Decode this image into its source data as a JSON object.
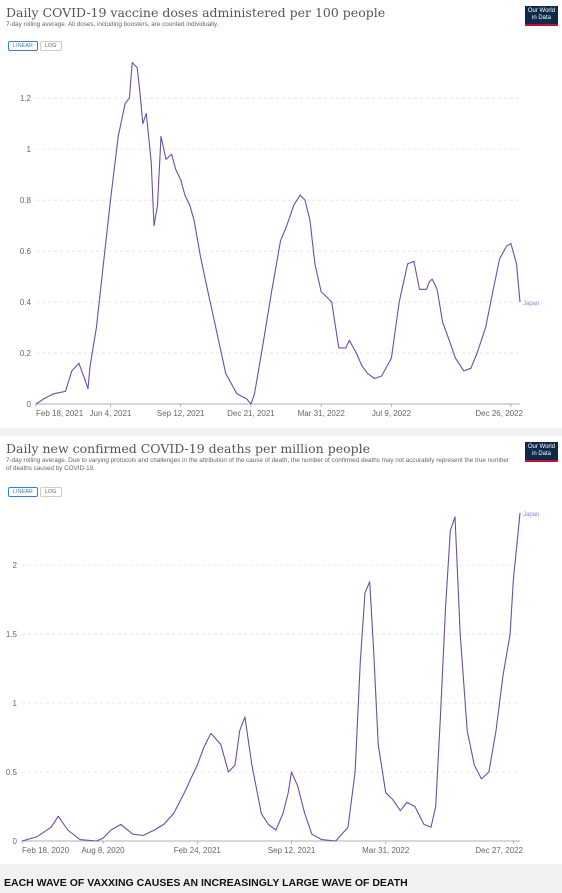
{
  "charts": [
    {
      "title": "Daily COVID-19 vaccine doses administered per 100 people",
      "subtitle": "7-day rolling average. All doses, including boosters, are counted individually.",
      "logo": [
        "Our World",
        "in Data"
      ],
      "toggles": [
        {
          "label": "LINEAR",
          "active": true
        },
        {
          "label": "LOG",
          "active": false
        }
      ]
    },
    {
      "title": "Daily new confirmed COVID-19 deaths per million people",
      "subtitle": "7-day rolling average. Due to varying protocols and challenges in the attribution of the cause of death, the number of confirmed deaths may not accurately represent the true number of deaths caused by COVID-19.",
      "logo": [
        "Our World",
        "in Data"
      ],
      "toggles": [
        {
          "label": "LINEAR",
          "active": true
        },
        {
          "label": "LOG",
          "active": false
        }
      ]
    }
  ],
  "caption": "EACH WAVE OF VAXXING CAUSES AN INCREASINGLY LARGE WAVE OF DEATH",
  "colors": {
    "line": "#6d4ea8",
    "grid": "#dddddd"
  },
  "chart_data": [
    {
      "type": "line",
      "title": "Daily COVID-19 vaccine doses administered per 100 people",
      "subtitle": "7-day rolling average. All doses, including boosters, are counted individually.",
      "xticks": [
        "Feb 18, 2021",
        "Jun 4, 2021",
        "Sep 12, 2021",
        "Dec 21, 2021",
        "Mar 31, 2022",
        "Jul 9, 2022",
        "Dec 26, 2022"
      ],
      "yticks": [
        "0",
        "0.2",
        "0.4",
        "0.6",
        "0.8",
        "1",
        "1.2"
      ],
      "ylim": [
        0,
        1.35
      ],
      "grid": true,
      "series": [
        {
          "name": "Japan",
          "x": [
            "2021-02-18",
            "2021-03-01",
            "2021-03-15",
            "2021-04-01",
            "2021-04-10",
            "2021-04-20",
            "2021-04-28",
            "2021-05-03",
            "2021-05-06",
            "2021-05-15",
            "2021-05-25",
            "2021-06-04",
            "2021-06-15",
            "2021-06-25",
            "2021-07-01",
            "2021-07-05",
            "2021-07-12",
            "2021-07-16",
            "2021-07-20",
            "2021-07-25",
            "2021-08-01",
            "2021-08-05",
            "2021-08-10",
            "2021-08-15",
            "2021-08-22",
            "2021-08-30",
            "2021-09-05",
            "2021-09-12",
            "2021-09-18",
            "2021-09-25",
            "2021-10-01",
            "2021-10-10",
            "2021-10-20",
            "2021-11-01",
            "2021-11-15",
            "2021-12-01",
            "2021-12-15",
            "2021-12-21",
            "2021-12-26",
            "2022-01-05",
            "2022-01-20",
            "2022-02-01",
            "2022-02-10",
            "2022-02-20",
            "2022-03-01",
            "2022-03-08",
            "2022-03-15",
            "2022-03-22",
            "2022-03-31",
            "2022-04-08",
            "2022-04-15",
            "2022-04-25",
            "2022-05-05",
            "2022-05-10",
            "2022-05-20",
            "2022-05-28",
            "2022-06-05",
            "2022-06-15",
            "2022-06-25",
            "2022-07-09",
            "2022-07-20",
            "2022-08-01",
            "2022-08-10",
            "2022-08-18",
            "2022-08-28",
            "2022-09-01",
            "2022-09-05",
            "2022-09-12",
            "2022-09-20",
            "2022-09-28",
            "2022-10-08",
            "2022-10-20",
            "2022-10-30",
            "2022-11-08",
            "2022-11-20",
            "2022-12-01",
            "2022-12-10",
            "2022-12-20",
            "2022-12-26",
            "2023-01-03",
            "2023-01-08"
          ],
          "values": [
            0.0,
            0.02,
            0.04,
            0.05,
            0.13,
            0.16,
            0.1,
            0.06,
            0.15,
            0.3,
            0.55,
            0.8,
            1.05,
            1.18,
            1.2,
            1.34,
            1.32,
            1.22,
            1.1,
            1.14,
            0.95,
            0.7,
            0.78,
            1.05,
            0.96,
            0.98,
            0.92,
            0.88,
            0.82,
            0.78,
            0.72,
            0.58,
            0.45,
            0.3,
            0.12,
            0.04,
            0.02,
            0.0,
            0.04,
            0.2,
            0.45,
            0.64,
            0.7,
            0.78,
            0.82,
            0.8,
            0.72,
            0.55,
            0.44,
            0.42,
            0.4,
            0.22,
            0.22,
            0.25,
            0.2,
            0.15,
            0.12,
            0.1,
            0.11,
            0.18,
            0.4,
            0.55,
            0.56,
            0.45,
            0.45,
            0.48,
            0.49,
            0.45,
            0.32,
            0.26,
            0.18,
            0.13,
            0.14,
            0.2,
            0.3,
            0.45,
            0.57,
            0.62,
            0.63,
            0.55,
            0.4
          ]
        }
      ]
    },
    {
      "type": "line",
      "title": "Daily new confirmed COVID-19 deaths per million people",
      "subtitle": "7-day rolling average. Due to varying protocols and challenges in the attribution of the cause of death, the number of confirmed deaths may not accurately represent the true number of deaths caused by COVID-19.",
      "xticks": [
        "Feb 18, 2020",
        "Aug 8, 2020",
        "Feb 24, 2021",
        "Sep 12, 2021",
        "Mar 31, 2022",
        "Dec 27, 2022"
      ],
      "yticks": [
        "0",
        "0.5",
        "1",
        "1.5",
        "2"
      ],
      "ylim": [
        0,
        2.4
      ],
      "grid": true,
      "series": [
        {
          "name": "Japan",
          "x": [
            "2020-02-18",
            "2020-03-20",
            "2020-04-20",
            "2020-05-05",
            "2020-05-25",
            "2020-06-20",
            "2020-07-25",
            "2020-08-08",
            "2020-08-25",
            "2020-09-15",
            "2020-10-10",
            "2020-11-01",
            "2020-11-25",
            "2020-12-15",
            "2021-01-05",
            "2021-01-20",
            "2021-02-01",
            "2021-02-10",
            "2021-02-24",
            "2021-03-10",
            "2021-03-25",
            "2021-04-15",
            "2021-05-01",
            "2021-05-15",
            "2021-05-25",
            "2021-06-05",
            "2021-06-20",
            "2021-07-10",
            "2021-07-25",
            "2021-08-10",
            "2021-08-25",
            "2021-09-05",
            "2021-09-12",
            "2021-09-25",
            "2021-10-10",
            "2021-10-25",
            "2021-11-15",
            "2021-12-15",
            "2022-01-10",
            "2022-01-25",
            "2022-02-05",
            "2022-02-15",
            "2022-02-25",
            "2022-03-05",
            "2022-03-15",
            "2022-03-31",
            "2022-04-15",
            "2022-05-01",
            "2022-05-15",
            "2022-06-01",
            "2022-06-20",
            "2022-07-05",
            "2022-07-15",
            "2022-07-25",
            "2022-08-05",
            "2022-08-15",
            "2022-08-25",
            "2022-09-05",
            "2022-09-20",
            "2022-10-05",
            "2022-10-20",
            "2022-11-05",
            "2022-11-20",
            "2022-12-05",
            "2022-12-20",
            "2022-12-27",
            "2023-01-05",
            "2023-01-10"
          ],
          "values": [
            0.0,
            0.03,
            0.1,
            0.18,
            0.08,
            0.01,
            0.0,
            0.02,
            0.08,
            0.12,
            0.05,
            0.04,
            0.08,
            0.12,
            0.2,
            0.3,
            0.38,
            0.45,
            0.55,
            0.68,
            0.78,
            0.7,
            0.5,
            0.55,
            0.8,
            0.9,
            0.55,
            0.2,
            0.12,
            0.08,
            0.2,
            0.35,
            0.5,
            0.4,
            0.2,
            0.05,
            0.01,
            0.0,
            0.1,
            0.5,
            1.3,
            1.8,
            1.88,
            1.4,
            0.7,
            0.35,
            0.3,
            0.22,
            0.28,
            0.25,
            0.12,
            0.1,
            0.25,
            0.9,
            1.7,
            2.25,
            2.35,
            1.5,
            0.8,
            0.55,
            0.45,
            0.5,
            0.8,
            1.2,
            1.5,
            1.9,
            2.2,
            2.38
          ]
        }
      ]
    }
  ]
}
